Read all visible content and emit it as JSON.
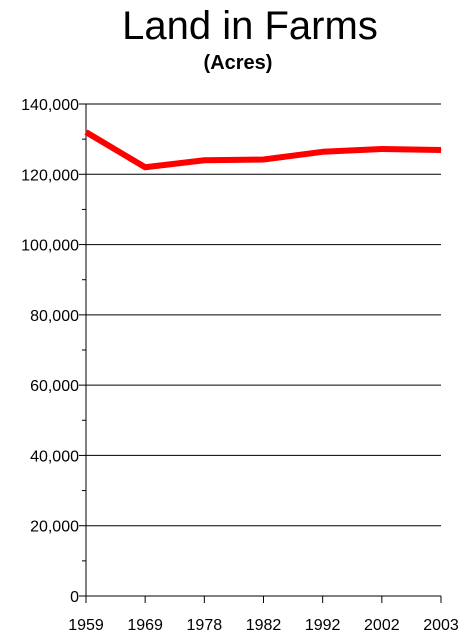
{
  "chart_data": {
    "type": "line",
    "title": "Land in Farms",
    "subtitle": "(Acres)",
    "xlabel": "",
    "ylabel": "",
    "categories": [
      "1959",
      "1969",
      "1978",
      "1982",
      "1992",
      "2002",
      "2003"
    ],
    "series": [
      {
        "values": [
          132000,
          122000,
          124000,
          124200,
          126400,
          127200,
          126900
        ],
        "color": "#ff0000"
      }
    ],
    "ylim": [
      0,
      140000
    ],
    "y_ticks": [
      "0",
      "20,000",
      "40,000",
      "60,000",
      "80,000",
      "100,000",
      "120,000",
      "140,000"
    ],
    "grid": true,
    "legend": "none"
  }
}
